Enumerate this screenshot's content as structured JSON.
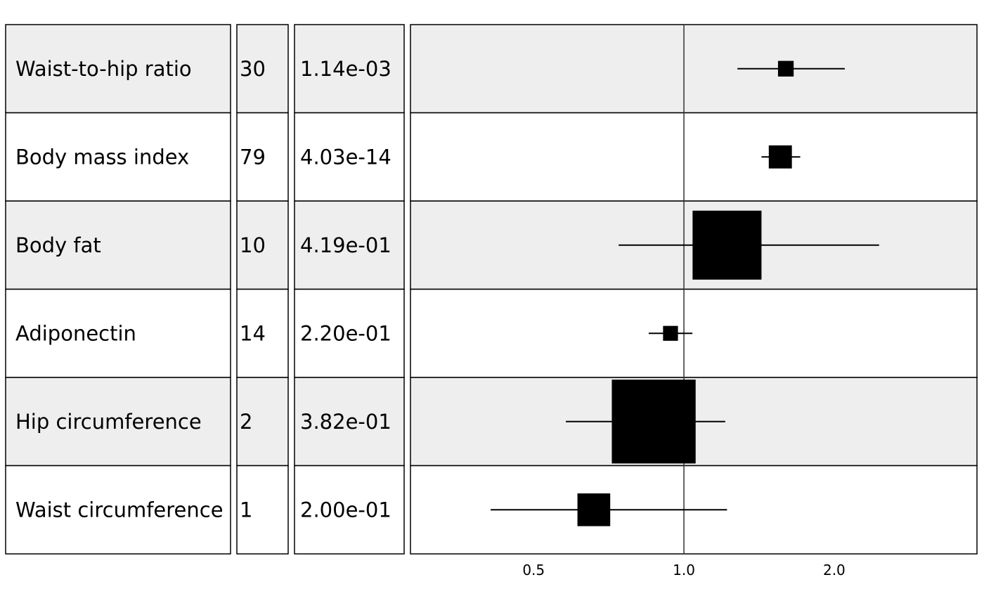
{
  "chart_data": {
    "type": "forest",
    "x_scale": "log2",
    "x_range": [
      0.2833,
      3.8637
    ],
    "reference_line": 1.0,
    "x_ticks": [
      {
        "value": 0.5,
        "label": "0.5"
      },
      {
        "value": 1.0,
        "label": "1.0"
      },
      {
        "value": 2.0,
        "label": "2.0"
      }
    ],
    "rows": [
      {
        "name": "Waist-to-hip ratio",
        "n": "30",
        "p": "1.14e-03",
        "estimate": 1.6,
        "ci_low": 1.28,
        "ci_high": 2.1,
        "weight": 0.42,
        "shaded": true
      },
      {
        "name": "Body mass index",
        "n": "79",
        "p": "4.03e-14",
        "estimate": 1.56,
        "ci_low": 1.43,
        "ci_high": 1.71,
        "weight": 0.62,
        "shaded": false
      },
      {
        "name": "Body fat",
        "n": "10",
        "p": "4.19e-01",
        "estimate": 1.22,
        "ci_low": 0.74,
        "ci_high": 2.46,
        "weight": 1.85,
        "shaded": true
      },
      {
        "name": "Adiponectin",
        "n": "14",
        "p": "2.20e-01",
        "estimate": 0.94,
        "ci_low": 0.85,
        "ci_high": 1.04,
        "weight": 0.4,
        "shaded": false
      },
      {
        "name": "Hip circumference",
        "n": "2",
        "p": "3.82e-01",
        "estimate": 0.87,
        "ci_low": 0.58,
        "ci_high": 1.21,
        "weight": 2.25,
        "shaded": true
      },
      {
        "name": "Waist circumference",
        "n": "1",
        "p": "2.00e-01",
        "estimate": 0.66,
        "ci_low": 0.41,
        "ci_high": 1.22,
        "weight": 0.88,
        "shaded": false
      }
    ]
  },
  "colors": {
    "shaded_row": "#eeeeee",
    "plain_row": "#ffffff",
    "border": "#000000",
    "reference_line": "#333333",
    "marker": "#000000"
  }
}
